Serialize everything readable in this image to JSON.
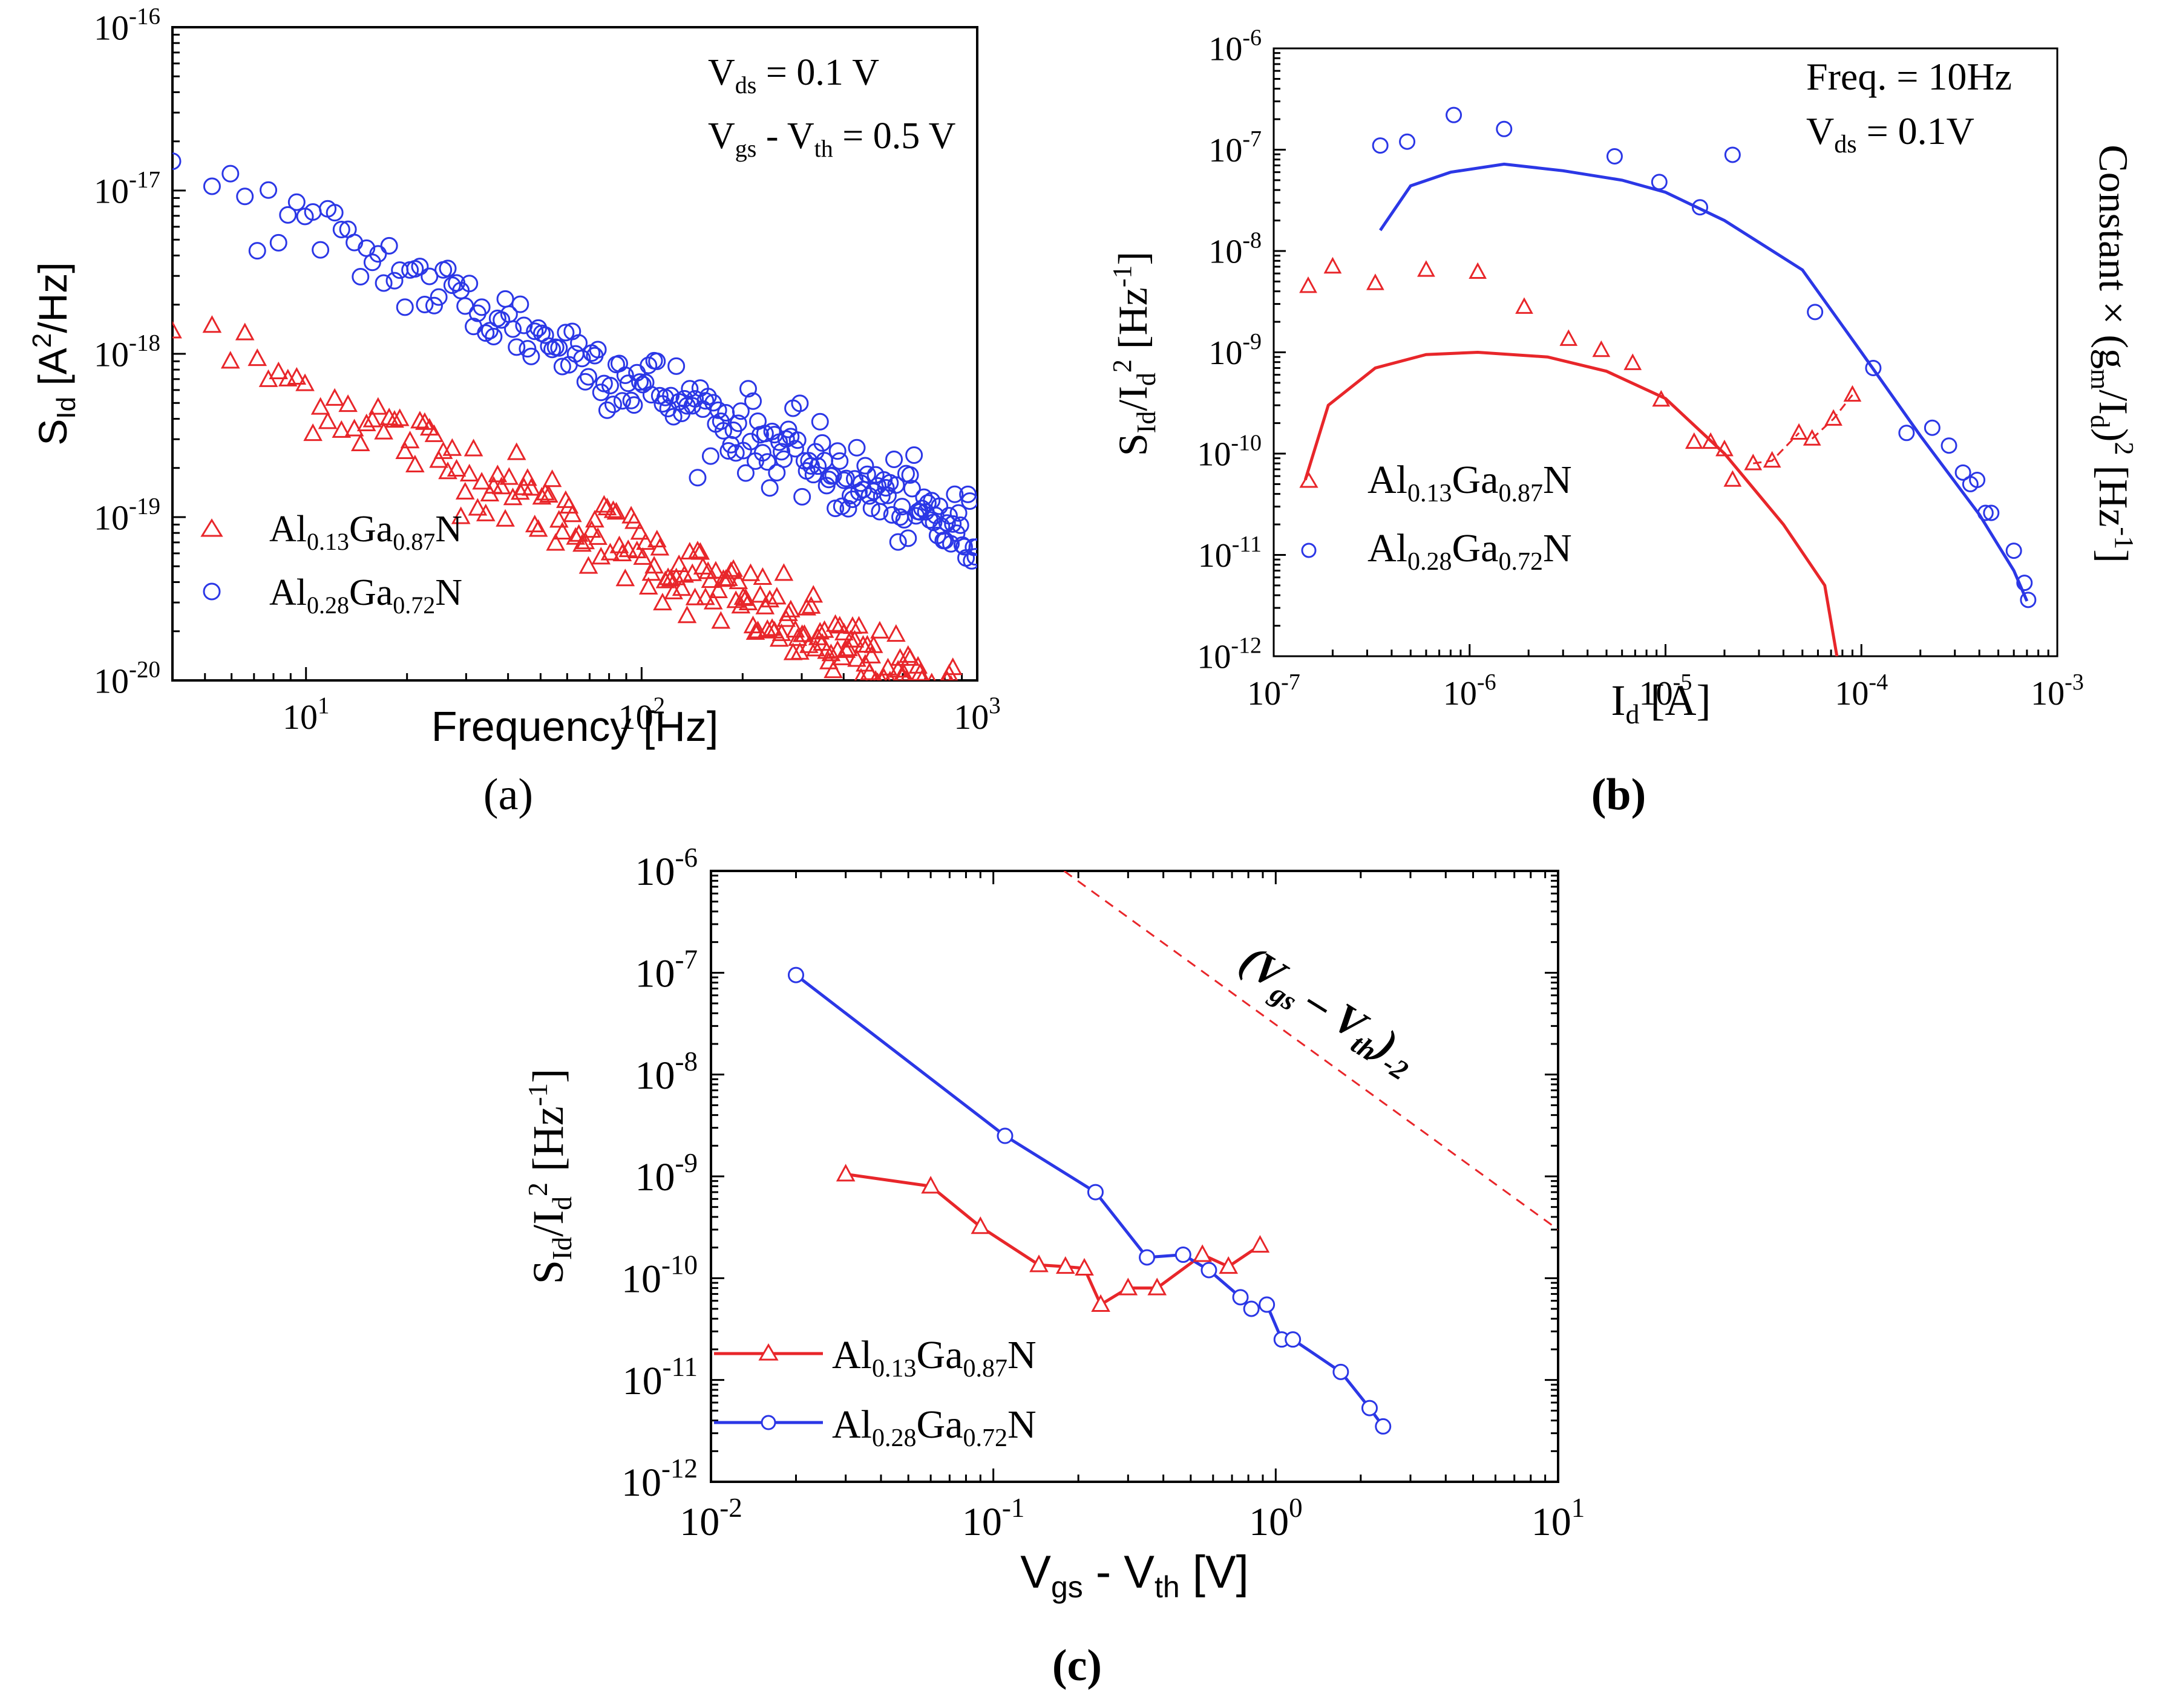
{
  "captions": {
    "a": "(a)",
    "b": "(b)",
    "c": "(c)"
  },
  "chart_data": [
    {
      "id": "a",
      "type": "scatter",
      "xlabel": "Frequency [Hz]",
      "ylabel": "S_Id [A^2/Hz]",
      "ylabel_parts": {
        "main": "S",
        "sub": "Id",
        "unit_open": " [A",
        "sup": "2",
        "unit_close": "/Hz]"
      },
      "xscale": "log",
      "yscale": "log",
      "xlim": [
        4,
        1000
      ],
      "ylim": [
        1e-20,
        1e-16
      ],
      "annotations": [
        {
          "main": "V",
          "sub": "ds",
          "rest": " = 0.1 V"
        },
        {
          "main": "V",
          "sub": "gs",
          "mid": " - V",
          "sub2": "th",
          "rest": " = 0.5 V"
        }
      ],
      "series": [
        {
          "name_parts": {
            "a": "Al",
            "s1": "0.13",
            "b": "Ga",
            "s2": "0.87",
            "c": "N"
          },
          "marker": "triangle",
          "color": "#e8262a",
          "trend": {
            "x_start": 4,
            "y_start": 1.5e-18,
            "slope": -1.0,
            "x_end": 1000
          }
        },
        {
          "name_parts": {
            "a": "Al",
            "s1": "0.28",
            "b": "Ga",
            "s2": "0.72",
            "c": "N"
          },
          "marker": "circle",
          "color": "#2b37e6",
          "trend": {
            "x_start": 4,
            "y_start": 1.4e-17,
            "slope": -0.95,
            "x_end": 1000
          }
        }
      ],
      "legend": "bottom-left"
    },
    {
      "id": "b",
      "type": "scatter",
      "xlabel_parts": {
        "main": "I",
        "sub": "d",
        "rest": " [A]"
      },
      "ylabel_parts": {
        "main": "S",
        "sub": "Id",
        "mid": "/I",
        "sub2": "d",
        "sup": "2",
        "unit_open": " [Hz",
        "sup2": "-1",
        "unit_close": "]"
      },
      "y2label_parts": {
        "a": "Constant × (g",
        "sub": "m",
        "b": "/I",
        "sub2": "d",
        "c": ")",
        "sup": "2",
        "d": " [Hz",
        "sup2": "-1",
        "e": "]"
      },
      "xscale": "log",
      "yscale": "log",
      "xlim": [
        1e-07,
        0.001
      ],
      "ylim": [
        1e-12,
        1e-06
      ],
      "annotations": [
        {
          "main": "Freq. = 10Hz"
        },
        {
          "main": "V",
          "sub": "ds",
          "rest": " = 0.1V"
        }
      ],
      "series": [
        {
          "name_parts": {
            "a": "Al",
            "s1": "0.13",
            "b": "Ga",
            "s2": "0.87",
            "c": "N"
          },
          "marker": "triangle",
          "color": "#e8262a",
          "points": [
            [
              1.5e-07,
              4.5e-09
            ],
            [
              2e-07,
              7e-09
            ],
            [
              3.3e-07,
              4.8e-09
            ],
            [
              6e-07,
              6.5e-09
            ],
            [
              1.1e-06,
              6.2e-09
            ],
            [
              1.9e-06,
              2.8e-09
            ],
            [
              3.2e-06,
              1.35e-09
            ],
            [
              4.7e-06,
              1.05e-09
            ],
            [
              6.8e-06,
              7.8e-10
            ],
            [
              9.5e-06,
              3.4e-10
            ],
            [
              1.4e-05,
              1.3e-10
            ],
            [
              1.7e-05,
              1.3e-10
            ],
            [
              2e-05,
              1.1e-10
            ],
            [
              2.2e-05,
              5.5e-11
            ],
            [
              2.8e-05,
              8e-11
            ],
            [
              3.5e-05,
              8.5e-11
            ],
            [
              4.8e-05,
              1.6e-10
            ],
            [
              5.6e-05,
              1.4e-10
            ],
            [
              7.2e-05,
              2.2e-10
            ],
            [
              9e-05,
              3.8e-10
            ]
          ],
          "segments": [
            [
              [
                2.8e-05,
                8e-11
              ],
              [
                3.5e-05,
                8.5e-11
              ],
              [
                4.8e-05,
                1.6e-10
              ]
            ],
            [
              [
                5.6e-05,
                1.4e-10
              ],
              [
                7.2e-05,
                2.2e-10
              ],
              [
                9e-05,
                3.8e-10
              ]
            ]
          ]
        },
        {
          "name_parts": {
            "a": "Al",
            "s1": "0.28",
            "b": "Ga",
            "s2": "0.72",
            "c": "N"
          },
          "marker": "circle",
          "color": "#2b37e6",
          "points": [
            [
              3.5e-07,
              1.1e-07
            ],
            [
              4.8e-07,
              1.2e-07
            ],
            [
              8.3e-07,
              2.2e-07
            ],
            [
              1.5e-06,
              1.6e-07
            ],
            [
              5.5e-06,
              8.6e-08
            ],
            [
              9.3e-06,
              4.8e-08
            ],
            [
              1.5e-05,
              2.7e-08
            ],
            [
              2.2e-05,
              8.9e-08
            ],
            [
              5.8e-05,
              2.5e-09
            ],
            [
              0.000115,
              7e-10
            ],
            [
              0.00017,
              1.6e-10
            ],
            [
              0.00023,
              1.8e-10
            ],
            [
              0.00028,
              1.2e-10
            ],
            [
              0.00033,
              6.5e-11
            ],
            [
              0.00036,
              5e-11
            ],
            [
              0.00039,
              5.5e-11
            ],
            [
              0.00043,
              2.6e-11
            ],
            [
              0.00046,
              2.6e-11
            ],
            [
              0.0006,
              1.1e-11
            ],
            [
              0.00068,
              5.3e-12
            ],
            [
              0.00071,
              3.6e-12
            ]
          ]
        },
        {
          "name": "",
          "type": "line",
          "color": "#e8262a",
          "points": [
            [
              1.45e-07,
              5.5e-11
            ],
            [
              1.9e-07,
              3e-10
            ],
            [
              3.3e-07,
              7e-10
            ],
            [
              6e-07,
              9.5e-10
            ],
            [
              1.1e-06,
              1e-09
            ],
            [
              2.5e-06,
              9e-10
            ],
            [
              5e-06,
              6.5e-10
            ],
            [
              1e-05,
              3.5e-10
            ],
            [
              2e-05,
              1e-10
            ],
            [
              4e-05,
              2e-11
            ],
            [
              6.5e-05,
              5e-12
            ],
            [
              7.5e-05,
              1e-12
            ]
          ]
        },
        {
          "name": "",
          "type": "line",
          "color": "#2b37e6",
          "points": [
            [
              3.5e-07,
              1.6e-08
            ],
            [
              5e-07,
              4.4e-08
            ],
            [
              8e-07,
              6e-08
            ],
            [
              1.5e-06,
              7.2e-08
            ],
            [
              3e-06,
              6.2e-08
            ],
            [
              6e-06,
              5e-08
            ],
            [
              1e-05,
              3.8e-08
            ],
            [
              2e-05,
              2e-08
            ],
            [
              5e-05,
              6.5e-09
            ],
            [
              0.0001,
              1e-09
            ],
            [
              0.0002,
              1.5e-10
            ],
            [
              0.0004,
              2.5e-11
            ],
            [
              0.0006,
              7e-12
            ],
            [
              0.0007,
              3.5e-12
            ]
          ]
        }
      ],
      "legend": "bottom-left"
    },
    {
      "id": "c",
      "type": "line",
      "xlabel_parts": {
        "main": "V",
        "sub": "gs",
        "mid": " - V",
        "sub2": "th",
        "rest": " [V]"
      },
      "ylabel_parts": {
        "main": "S",
        "sub": "Id",
        "mid": "/I",
        "sub2": "d",
        "sup": "2",
        "unit_open": " [Hz",
        "sup2": "-1",
        "unit_close": "]"
      },
      "xscale": "log",
      "yscale": "log",
      "xlim": [
        0.01,
        10
      ],
      "ylim": [
        1e-12,
        1e-06
      ],
      "annotation": {
        "open": "(V",
        "sub": "gs",
        "mid": " – V",
        "sub2": "th",
        "close": ")",
        "sup": "-2"
      },
      "reference_line": {
        "style": "dashed",
        "color": "#e8262a",
        "slope": -2,
        "points": [
          [
            0.178,
            1e-06
          ],
          [
            10,
            3e-10
          ]
        ]
      },
      "series": [
        {
          "name_parts": {
            "a": "Al",
            "s1": "0.13",
            "b": "Ga",
            "s2": "0.87",
            "c": "N"
          },
          "marker": "triangle",
          "color": "#e8262a",
          "points": [
            [
              0.03,
              1.05e-09
            ],
            [
              0.06,
              8e-10
            ],
            [
              0.09,
              3.2e-10
            ],
            [
              0.145,
              1.35e-10
            ],
            [
              0.18,
              1.3e-10
            ],
            [
              0.21,
              1.25e-10
            ],
            [
              0.24,
              5.5e-11
            ],
            [
              0.3,
              8e-11
            ],
            [
              0.38,
              8e-11
            ],
            [
              0.55,
              1.7e-10
            ],
            [
              0.68,
              1.3e-10
            ],
            [
              0.88,
              2.1e-10
            ]
          ]
        },
        {
          "name_parts": {
            "a": "Al",
            "s1": "0.28",
            "b": "Ga",
            "s2": "0.72",
            "c": "N"
          },
          "marker": "circle",
          "color": "#2b37e6",
          "points": [
            [
              0.02,
              9.5e-08
            ],
            [
              0.11,
              2.5e-09
            ],
            [
              0.23,
              7e-10
            ],
            [
              0.35,
              1.6e-10
            ],
            [
              0.47,
              1.7e-10
            ],
            [
              0.58,
              1.2e-10
            ],
            [
              0.75,
              6.5e-11
            ],
            [
              0.82,
              5e-11
            ],
            [
              0.93,
              5.5e-11
            ],
            [
              1.05,
              2.5e-11
            ],
            [
              1.15,
              2.5e-11
            ],
            [
              1.7,
              1.2e-11
            ],
            [
              2.15,
              5.3e-12
            ],
            [
              2.4,
              3.5e-12
            ]
          ]
        }
      ],
      "legend": "bottom-left"
    }
  ]
}
